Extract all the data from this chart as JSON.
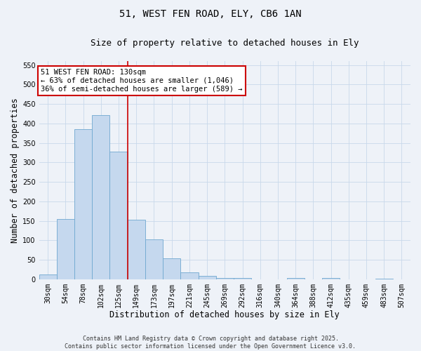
{
  "title_line1": "51, WEST FEN ROAD, ELY, CB6 1AN",
  "title_line2": "Size of property relative to detached houses in Ely",
  "xlabel": "Distribution of detached houses by size in Ely",
  "ylabel": "Number of detached properties",
  "categories": [
    "30sqm",
    "54sqm",
    "78sqm",
    "102sqm",
    "125sqm",
    "149sqm",
    "173sqm",
    "197sqm",
    "221sqm",
    "245sqm",
    "269sqm",
    "292sqm",
    "316sqm",
    "340sqm",
    "364sqm",
    "388sqm",
    "412sqm",
    "435sqm",
    "459sqm",
    "483sqm",
    "507sqm"
  ],
  "values": [
    12,
    155,
    385,
    422,
    328,
    152,
    102,
    54,
    18,
    8,
    4,
    4,
    0,
    0,
    3,
    0,
    3,
    0,
    0,
    2,
    0
  ],
  "bar_color": "#c5d8ee",
  "bar_edge_color": "#6fa8d0",
  "grid_color": "#c8d8ea",
  "background_color": "#eef2f8",
  "vline_x_index": 4,
  "vline_color": "#cc0000",
  "annotation_text": "51 WEST FEN ROAD: 130sqm\n← 63% of detached houses are smaller (1,046)\n36% of semi-detached houses are larger (589) →",
  "ylim": [
    0,
    560
  ],
  "yticks": [
    0,
    50,
    100,
    150,
    200,
    250,
    300,
    350,
    400,
    450,
    500,
    550
  ],
  "footer_text": "Contains HM Land Registry data © Crown copyright and database right 2025.\nContains public sector information licensed under the Open Government Licence v3.0.",
  "title_fontsize": 10,
  "subtitle_fontsize": 9,
  "axis_label_fontsize": 8.5,
  "tick_fontsize": 7,
  "annotation_fontsize": 7.5,
  "footer_fontsize": 6
}
